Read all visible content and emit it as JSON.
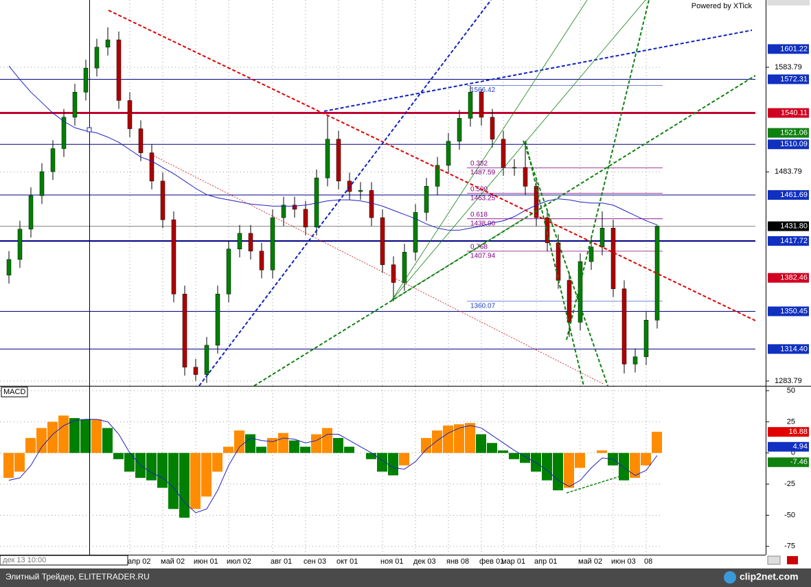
{
  "powered_by": "Powered by XTick",
  "cursor_label": "дек 13 10:00",
  "footer": {
    "text": "Элитный Трейдер, ELITETRADER.RU",
    "logo": "clip2net.com"
  },
  "chart_data": [
    {
      "type": "candlestick",
      "categories": [
        null,
        null,
        null,
        null,
        null,
        null,
        null,
        null,
        null,
        null,
        null,
        "апр 02",
        null,
        null,
        "май 02",
        null,
        null,
        "июн 01",
        null,
        null,
        "июл 02",
        null,
        null,
        null,
        "авг 01",
        null,
        null,
        "сен 03",
        null,
        null,
        "окт 01",
        null,
        null,
        null,
        "ноя 01",
        null,
        null,
        "дек 03",
        null,
        null,
        "янв 08",
        null,
        null,
        "фев 01",
        null,
        "мар 01",
        null,
        null,
        "апр 01",
        null,
        null,
        null,
        "май 02",
        null,
        null,
        "июн 03",
        null,
        null,
        "08",
        null
      ],
      "open": [
        1385,
        1400,
        1429,
        1461,
        1484,
        1506,
        1536,
        1560,
        1583,
        1603,
        1610,
        1552,
        1525,
        1502,
        1475,
        1438,
        1367,
        1297,
        1290,
        1318,
        1367,
        1410,
        1425,
        1408,
        1390,
        1440,
        1452,
        1448,
        1431,
        1478,
        1515,
        1475,
        1465,
        1466,
        1440,
        1395,
        1378,
        1407,
        1445,
        1470,
        1490,
        1513,
        1535,
        1560,
        1536,
        1515,
        1488,
        1488,
        1470,
        1440,
        1416,
        1380,
        1340,
        1398,
        1412,
        1430,
        1372,
        1300,
        1307,
        1342
      ],
      "high": [
        1408,
        1437,
        1469,
        1492,
        1514,
        1544,
        1568,
        1591,
        1611,
        1622,
        1618,
        1560,
        1533,
        1510,
        1483,
        1446,
        1375,
        1305,
        1326,
        1375,
        1418,
        1433,
        1433,
        1416,
        1448,
        1460,
        1460,
        1456,
        1486,
        1537,
        1523,
        1483,
        1474,
        1474,
        1448,
        1403,
        1415,
        1453,
        1478,
        1498,
        1521,
        1543,
        1566,
        1563,
        1544,
        1523,
        1496,
        1512,
        1478,
        1448,
        1424,
        1388,
        1406,
        1420,
        1446,
        1438,
        1380,
        1315,
        1350,
        1433
      ],
      "low": [
        1377,
        1392,
        1421,
        1453,
        1476,
        1498,
        1528,
        1552,
        1575,
        1595,
        1544,
        1517,
        1494,
        1467,
        1430,
        1359,
        1289,
        1284,
        1282,
        1310,
        1359,
        1402,
        1400,
        1382,
        1382,
        1432,
        1440,
        1423,
        1423,
        1470,
        1467,
        1457,
        1457,
        1432,
        1387,
        1360,
        1370,
        1399,
        1437,
        1462,
        1482,
        1505,
        1527,
        1528,
        1507,
        1480,
        1480,
        1462,
        1432,
        1408,
        1372,
        1326,
        1332,
        1390,
        1404,
        1364,
        1291,
        1292,
        1299,
        1334
      ],
      "close": [
        1400,
        1429,
        1461,
        1484,
        1506,
        1536,
        1560,
        1583,
        1603,
        1610,
        1552,
        1525,
        1502,
        1475,
        1438,
        1367,
        1297,
        1290,
        1318,
        1367,
        1410,
        1425,
        1408,
        1390,
        1440,
        1452,
        1448,
        1431,
        1478,
        1515,
        1475,
        1465,
        1466,
        1440,
        1395,
        1378,
        1407,
        1445,
        1470,
        1490,
        1513,
        1535,
        1560,
        1536,
        1515,
        1488,
        1488,
        1470,
        1440,
        1416,
        1380,
        1340,
        1398,
        1412,
        1430,
        1372,
        1300,
        1307,
        1342,
        1431.8
      ],
      "up_color": "#008000",
      "down_color": "#b00000",
      "overlay": {
        "color": "#2020c0",
        "values": [
          1585,
          1572,
          1560,
          1550,
          1540,
          1532,
          1526,
          1523,
          1521,
          1517,
          1512,
          1505,
          1498,
          1494,
          1488,
          1482,
          1475,
          1468,
          1462,
          1459,
          1457,
          1455,
          1453,
          1452,
          1451,
          1451,
          1451,
          1452,
          1454,
          1456,
          1457,
          1457,
          1456,
          1454,
          1451,
          1447,
          1443,
          1439,
          1434,
          1430,
          1428,
          1428,
          1430,
          1432,
          1435,
          1437,
          1441,
          1447,
          1452,
          1456,
          1458,
          1457,
          1455,
          1454,
          1454,
          1452,
          1447,
          1442,
          1437,
          1433
        ]
      },
      "ylim": [
        1279.2,
        1648.1
      ],
      "yticks": [
        1283.79,
        1483.79,
        1583.79
      ],
      "grid": true,
      "levels": [
        {
          "value": 1601.22,
          "color": "#1030c0",
          "line": false
        },
        {
          "value": 1572.31,
          "color": "#1030c0",
          "line": true
        },
        {
          "value": 1540.11,
          "color": "#d00020",
          "line": true
        },
        {
          "value": 1521.06,
          "color": "#108010",
          "line": false
        },
        {
          "value": 1510.09,
          "color": "#1030c0",
          "line": true
        },
        {
          "value": 1461.69,
          "color": "#1030c0",
          "line": true
        },
        {
          "value": 1431.8,
          "label": "1431.80",
          "color": "#000000",
          "line": true
        },
        {
          "value": 1417.72,
          "color": "#1030c0",
          "line": true
        },
        {
          "value": 1382.46,
          "color": "#d00020",
          "line": false
        },
        {
          "value": 1350.45,
          "color": "#1030c0",
          "line": true
        },
        {
          "value": 1314.4,
          "label": "1314.40",
          "color": "#1030c0",
          "line": true
        }
      ],
      "fib_levels": [
        {
          "ratio": "0.382",
          "value": 1487.59
        },
        {
          "ratio": "0.500",
          "value": 1463.25
        },
        {
          "ratio": "0.618",
          "value": 1438.9,
          "label": "1438.90"
        },
        {
          "ratio": "0.768",
          "value": 1407.94
        }
      ],
      "annotations": [
        {
          "value": 1566.42
        },
        {
          "value": 1360.07
        }
      ]
    },
    {
      "type": "macd",
      "title": "MACD",
      "histogram": [
        -20,
        -15,
        12,
        20,
        25,
        30,
        28,
        27,
        27,
        20,
        -5,
        -15,
        -20,
        -22,
        -28,
        -45,
        -52,
        -45,
        -35,
        -15,
        5,
        18,
        15,
        5,
        12,
        16,
        10,
        5,
        15,
        20,
        12,
        5,
        0,
        -5,
        -15,
        -18,
        -10,
        0,
        12,
        18,
        22,
        23,
        24,
        15,
        8,
        2,
        -5,
        -8,
        -15,
        -22,
        -30,
        -28,
        -12,
        0,
        2,
        -10,
        -22,
        -20,
        -10,
        17
      ],
      "signal": [
        -22,
        -20,
        -10,
        5,
        15,
        22,
        26,
        27,
        27,
        25,
        15,
        0,
        -10,
        -16,
        -20,
        -28,
        -40,
        -48,
        -45,
        -30,
        -10,
        5,
        12,
        10,
        9,
        12,
        11,
        8,
        10,
        15,
        15,
        10,
        5,
        0,
        -6,
        -12,
        -13,
        -7,
        3,
        10,
        16,
        20,
        22,
        20,
        14,
        8,
        2,
        -3,
        -8,
        -14,
        -22,
        -27,
        -22,
        -12,
        -4,
        -5,
        -12,
        -18,
        -14,
        -2
      ],
      "up_color": "#ff8c00",
      "down_color": "#008000",
      "signal_color": "#2020c0",
      "ylim": [
        -81.7,
        53.3
      ],
      "yticks": [
        50,
        25,
        0,
        -25,
        -50,
        -75
      ],
      "grid": true,
      "levels": [
        {
          "value": 16.88,
          "color": "#e00000"
        },
        {
          "value": 4.94,
          "color": "#1030c0"
        },
        {
          "value": -7.46,
          "color": "#108010"
        }
      ]
    }
  ]
}
